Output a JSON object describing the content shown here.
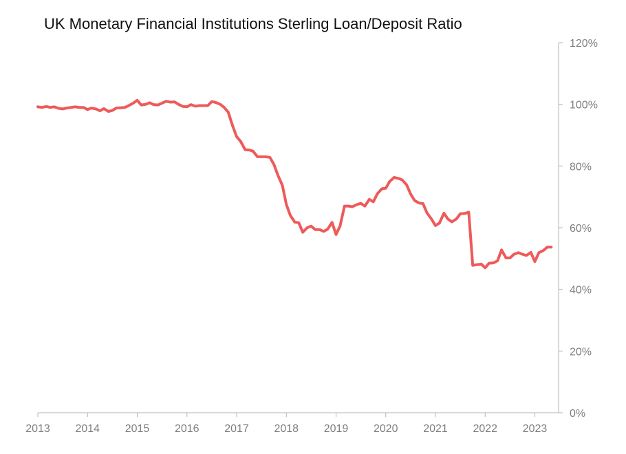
{
  "chart_data": {
    "type": "line",
    "title": "UK Monetary Financial Institutions Sterling Loan/Deposit Ratio",
    "xlabel": "",
    "ylabel": "",
    "xlim": [
      2013,
      2023.33
    ],
    "ylim": [
      0,
      120
    ],
    "x_ticks": [
      "2013",
      "2014",
      "2015",
      "2016",
      "2017",
      "2018",
      "2019",
      "2020",
      "2021",
      "2022",
      "2023"
    ],
    "y_ticks": [
      "0%",
      "20%",
      "40%",
      "60%",
      "80%",
      "100%",
      "120%"
    ],
    "y_axis_side": "right",
    "grid": false,
    "legend": "none",
    "colors": {
      "line": "#ee5a5a",
      "axis": "#b3b3b3",
      "tick_text": "#7f7f7f"
    },
    "series": [
      {
        "x": [
          2013.0,
          2013.08,
          2013.17,
          2013.25,
          2013.33,
          2013.42,
          2013.5,
          2013.58,
          2013.67,
          2013.75,
          2013.83,
          2013.92,
          2014.0,
          2014.08,
          2014.17,
          2014.25,
          2014.33,
          2014.42,
          2014.5,
          2014.58,
          2014.67,
          2014.75,
          2014.83,
          2014.92,
          2015.0,
          2015.08,
          2015.17,
          2015.25,
          2015.33,
          2015.42,
          2015.5,
          2015.58,
          2015.67,
          2015.75,
          2015.83,
          2015.92,
          2016.0,
          2016.08,
          2016.17,
          2016.25,
          2016.33,
          2016.42,
          2016.5,
          2016.58,
          2016.67,
          2016.75,
          2016.83,
          2016.92,
          2017.0,
          2017.08,
          2017.17,
          2017.25,
          2017.33,
          2017.42,
          2017.5,
          2017.58,
          2017.67,
          2017.75,
          2017.83,
          2017.92,
          2018.0,
          2018.08,
          2018.17,
          2018.25,
          2018.33,
          2018.42,
          2018.5,
          2018.58,
          2018.67,
          2018.75,
          2018.83,
          2018.92,
          2019.0,
          2019.08,
          2019.17,
          2019.25,
          2019.33,
          2019.42,
          2019.5,
          2019.58,
          2019.67,
          2019.75,
          2019.83,
          2019.92,
          2020.0,
          2020.08,
          2020.17,
          2020.25,
          2020.33,
          2020.42,
          2020.5,
          2020.58,
          2020.67,
          2020.75,
          2020.83,
          2020.92,
          2021.0,
          2021.08,
          2021.17,
          2021.25,
          2021.33,
          2021.42,
          2021.5,
          2021.58,
          2021.67,
          2021.75,
          2021.83,
          2021.92,
          2022.0,
          2022.08,
          2022.17,
          2022.25,
          2022.33,
          2022.42,
          2022.5,
          2022.58,
          2022.67,
          2022.75,
          2022.83,
          2022.92,
          2023.0,
          2023.08,
          2023.17,
          2023.25,
          2023.33
        ],
        "values": [
          99.2,
          99.0,
          99.3,
          99.0,
          99.2,
          98.7,
          98.5,
          98.8,
          99.0,
          99.2,
          99.0,
          99.0,
          98.3,
          98.8,
          98.5,
          97.9,
          98.6,
          97.7,
          98.0,
          98.8,
          98.9,
          99.0,
          99.6,
          100.4,
          101.3,
          99.8,
          100.0,
          100.5,
          99.9,
          99.8,
          100.4,
          101.0,
          100.7,
          100.8,
          100.0,
          99.3,
          99.2,
          99.9,
          99.4,
          99.6,
          99.6,
          99.6,
          100.9,
          100.6,
          100.0,
          99.0,
          97.5,
          93.0,
          89.5,
          88.0,
          85.3,
          85.2,
          84.8,
          83.0,
          83.0,
          83.0,
          82.8,
          80.5,
          77.0,
          73.7,
          67.5,
          64.0,
          61.8,
          61.6,
          58.5,
          60.0,
          60.5,
          59.4,
          59.4,
          58.8,
          59.5,
          61.7,
          57.8,
          60.5,
          67.0,
          67.0,
          66.8,
          67.5,
          67.9,
          67.0,
          69.2,
          68.4,
          71.0,
          72.6,
          72.8,
          75.0,
          76.3,
          76.0,
          75.5,
          73.9,
          70.9,
          68.8,
          68.0,
          67.8,
          64.8,
          62.8,
          60.7,
          61.5,
          64.7,
          62.8,
          61.9,
          62.8,
          64.5,
          64.6,
          65.0,
          47.8,
          48.0,
          48.2,
          47.0,
          48.5,
          48.6,
          49.3,
          52.8,
          50.2,
          50.2,
          51.4,
          51.9,
          51.4,
          51.0,
          52.0,
          49.0,
          51.9,
          52.6,
          53.7,
          53.7
        ]
      }
    ]
  }
}
